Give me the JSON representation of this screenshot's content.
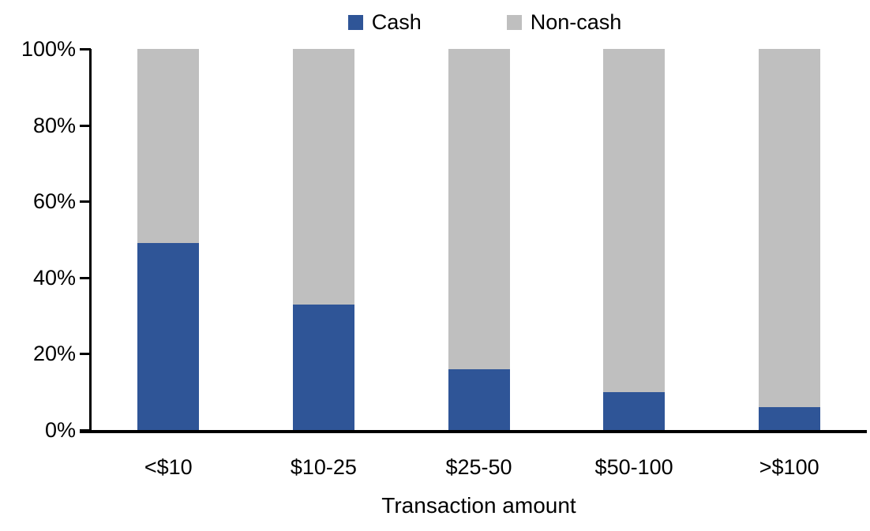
{
  "chart_data": {
    "type": "bar",
    "variant": "stacked-100-percent",
    "title": "",
    "xlabel": "Transaction amount",
    "ylabel": "",
    "categories": [
      "<$10",
      "$10-25",
      "$25-50",
      "$50-100",
      ">$100"
    ],
    "series": [
      {
        "name": "Cash",
        "color": "#2F5597",
        "values": [
          49,
          33,
          16,
          10,
          6
        ]
      },
      {
        "name": "Non-cash",
        "color": "#BFBFBF",
        "values": [
          51,
          67,
          84,
          90,
          94
        ]
      }
    ],
    "ylim": [
      0,
      100
    ],
    "yticks": [
      "0%",
      "20%",
      "40%",
      "60%",
      "80%",
      "100%"
    ],
    "grid": false,
    "legend_position": "top",
    "axis_color": "#000000",
    "text_color": "#000000"
  }
}
